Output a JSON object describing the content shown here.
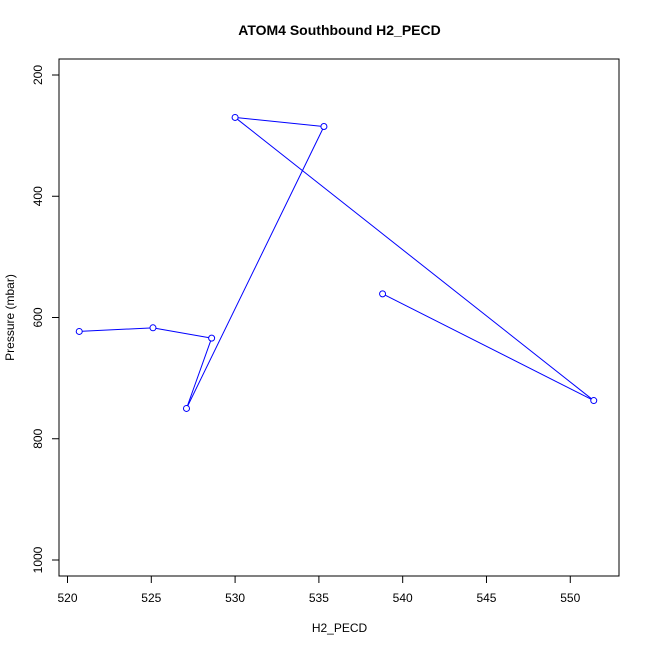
{
  "chart_data": {
    "type": "line",
    "title": "ATOM4 Southbound H2_PECD",
    "xlabel": "H2_PECD",
    "ylabel": "Pressure (mbar)",
    "xlim": [
      519.6,
      552.7
    ],
    "ylim": [
      1040,
      175
    ],
    "y_reversed": true,
    "x_ticks": [
      520,
      525,
      530,
      535,
      540,
      545,
      550
    ],
    "y_ticks": [
      200,
      400,
      600,
      800,
      1000
    ],
    "grid": false,
    "legend": false,
    "series": [
      {
        "color": "#0000ff",
        "marker": "open-circle",
        "points": [
          {
            "x": 538.8,
            "y": 561
          },
          {
            "x": 551.4,
            "y": 737
          },
          {
            "x": 530.0,
            "y": 270
          },
          {
            "x": 535.3,
            "y": 285
          },
          {
            "x": 527.1,
            "y": 750
          },
          {
            "x": 528.6,
            "y": 634
          },
          {
            "x": 525.1,
            "y": 617
          },
          {
            "x": 520.7,
            "y": 623
          }
        ]
      }
    ]
  }
}
